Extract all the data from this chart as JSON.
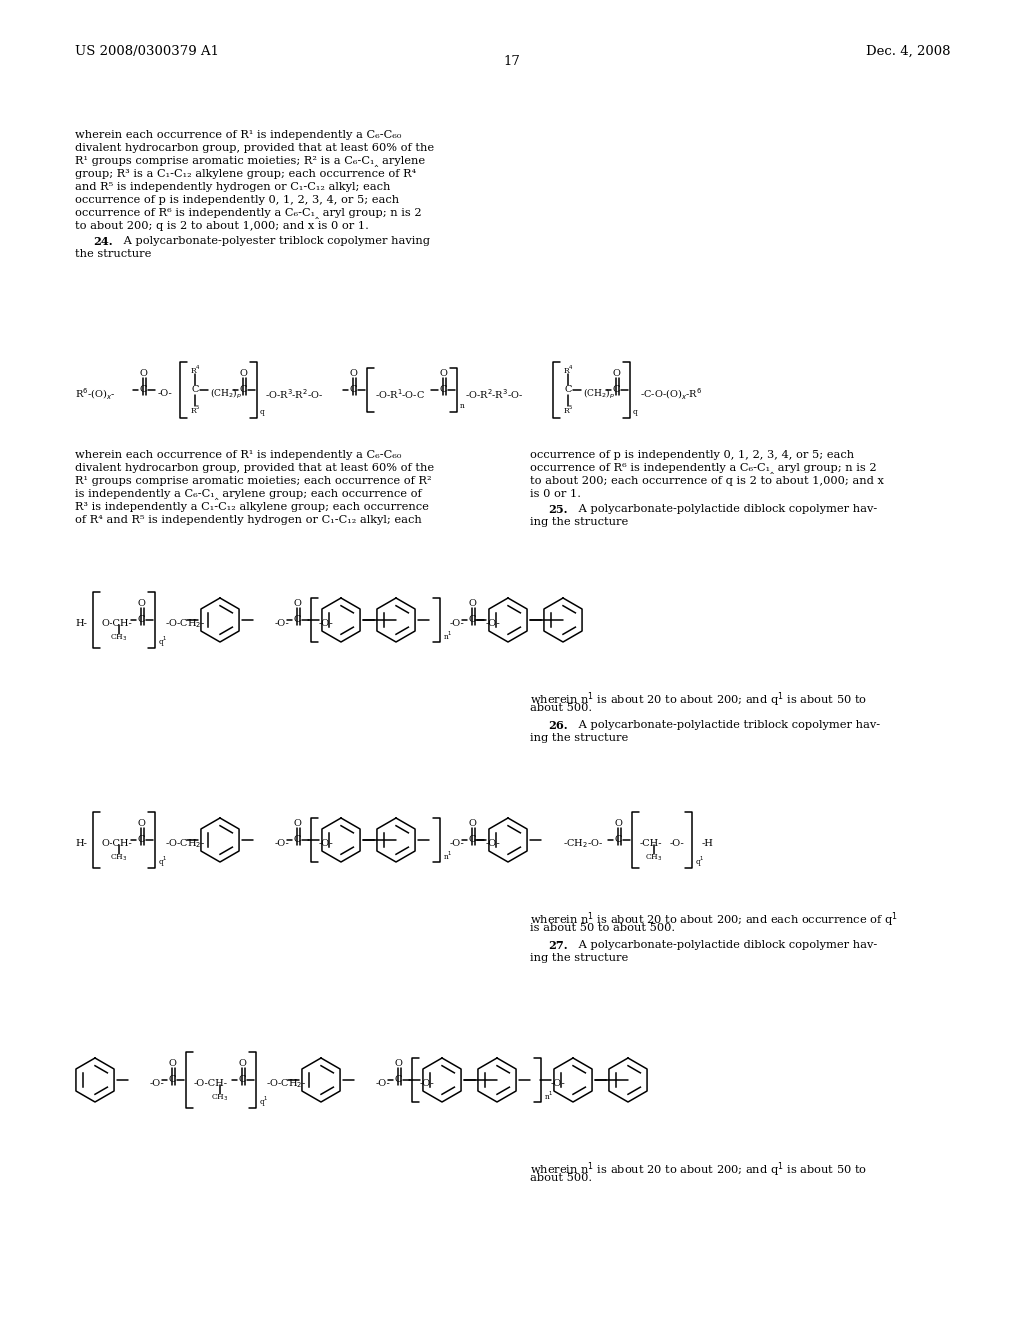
{
  "bg": "#ffffff",
  "header_left": "US 2008/0300379 A1",
  "header_right": "Dec. 4, 2008",
  "page_num": "17"
}
